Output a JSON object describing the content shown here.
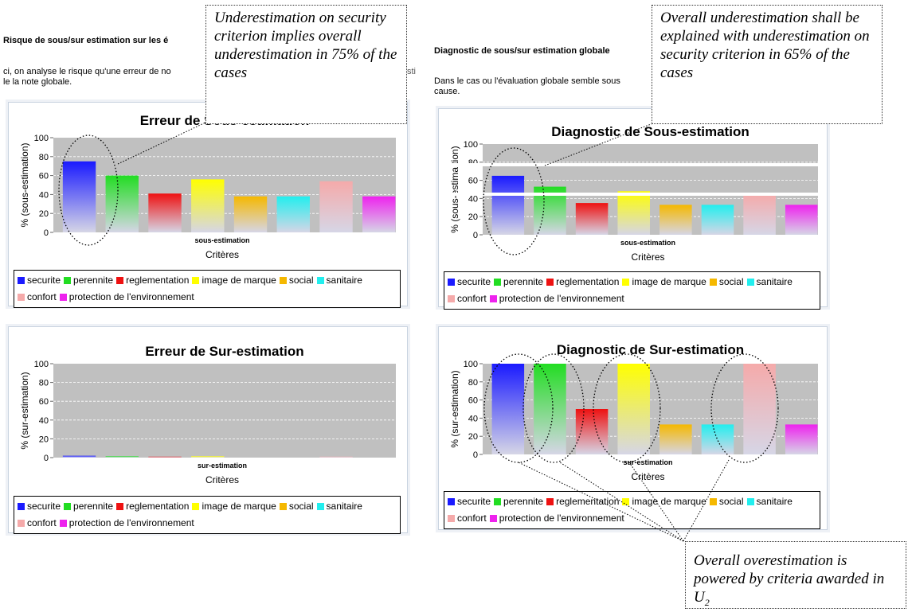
{
  "left_header": "Risque de sous/sur estimation sur les é",
  "left_intro": [
    "ci, on analyse le risque qu'une erreur de no",
    "le la note globale."
  ],
  "left_intro_tail": "sti",
  "right_header": "Diagnostic de sous/sur estimation globale",
  "right_intro": [
    "Dans le cas ou l'évaluation globale semble sous",
    "cause."
  ],
  "legend": [
    {
      "label": "securite",
      "color": "#1a1aff"
    },
    {
      "label": "perennite",
      "color": "#22dd22"
    },
    {
      "label": "reglementation",
      "color": "#ee1111"
    },
    {
      "label": "image de marque",
      "color": "#ffff00"
    },
    {
      "label": "social",
      "color": "#f5b800"
    },
    {
      "label": "sanitaire",
      "color": "#22eeee"
    },
    {
      "label": "confort",
      "color": "#f5aaaa"
    },
    {
      "label": "protection de l'environnement",
      "color": "#ee22ee"
    }
  ],
  "annotations": {
    "top_left": "Underestimation on security criterion implies overall underestimation in 75% of the cases",
    "top_right": "Overall underestimation shall be explained with underestimation on security criterion in 65% of the cases",
    "bottom_right_main": "Overall overestimation is powered by criteria awarded in U",
    "bottom_right_sub": "2"
  },
  "chart_data": [
    {
      "type": "bar",
      "title": "Erreur de Sous-estimation",
      "xlabel": "Critères",
      "ylabel": "% (sous-estimation)",
      "category_label": "sous-estimation",
      "ylim": [
        0,
        100
      ],
      "yticks": [
        0,
        20,
        40,
        60,
        80,
        100
      ],
      "grid": true,
      "legend_position": "bottom",
      "series": [
        {
          "name": "securite",
          "values": [
            75
          ]
        },
        {
          "name": "perennite",
          "values": [
            60
          ]
        },
        {
          "name": "reglementation",
          "values": [
            41
          ]
        },
        {
          "name": "image de marque",
          "values": [
            56
          ]
        },
        {
          "name": "social",
          "values": [
            38
          ]
        },
        {
          "name": "sanitaire",
          "values": [
            38
          ]
        },
        {
          "name": "confort",
          "values": [
            54
          ]
        },
        {
          "name": "protection de l'environnement",
          "values": [
            38
          ]
        }
      ]
    },
    {
      "type": "bar",
      "title": "Diagnostic de Sous-estimation",
      "xlabel": "Critères",
      "ylabel": "% (sous-estima tion)",
      "category_label": "sous-estimation",
      "ylim": [
        0,
        100
      ],
      "yticks": [
        0,
        20,
        40,
        60,
        80,
        100
      ],
      "grid": true,
      "legend_position": "bottom",
      "series": [
        {
          "name": "securite",
          "values": [
            65
          ]
        },
        {
          "name": "perennite",
          "values": [
            53
          ]
        },
        {
          "name": "reglementation",
          "values": [
            35
          ]
        },
        {
          "name": "image de marque",
          "values": [
            48
          ]
        },
        {
          "name": "social",
          "values": [
            33
          ]
        },
        {
          "name": "sanitaire",
          "values": [
            33
          ]
        },
        {
          "name": "confort",
          "values": [
            45
          ]
        },
        {
          "name": "protection de l'environnement",
          "values": [
            33
          ]
        }
      ]
    },
    {
      "type": "bar",
      "title": "Erreur de Sur-estimation",
      "xlabel": "Critères",
      "ylabel": "% (sur-estimation)",
      "category_label": "sur-estimation",
      "ylim": [
        0,
        100
      ],
      "yticks": [
        0,
        20,
        40,
        60,
        80,
        100
      ],
      "grid": true,
      "legend_position": "bottom",
      "series": [
        {
          "name": "securite",
          "values": [
            2
          ]
        },
        {
          "name": "perennite",
          "values": [
            1.5
          ]
        },
        {
          "name": "reglementation",
          "values": [
            1
          ]
        },
        {
          "name": "image de marque",
          "values": [
            1.5
          ]
        },
        {
          "name": "social",
          "values": [
            0
          ]
        },
        {
          "name": "sanitaire",
          "values": [
            0
          ]
        },
        {
          "name": "confort",
          "values": [
            1
          ]
        },
        {
          "name": "protection de l'environnement",
          "values": [
            0
          ]
        }
      ]
    },
    {
      "type": "bar",
      "title": "Diagnostic de Sur-estimation",
      "xlabel": "Critères",
      "ylabel": "% (sur-estimation)",
      "category_label": "sur-estimation",
      "ylim": [
        0,
        100
      ],
      "yticks": [
        0,
        20,
        40,
        60,
        80,
        100
      ],
      "grid": true,
      "legend_position": "bottom",
      "series": [
        {
          "name": "securite",
          "values": [
            100
          ]
        },
        {
          "name": "perennite",
          "values": [
            100
          ]
        },
        {
          "name": "reglementation",
          "values": [
            50
          ]
        },
        {
          "name": "image de marque",
          "values": [
            100
          ]
        },
        {
          "name": "social",
          "values": [
            33
          ]
        },
        {
          "name": "sanitaire",
          "values": [
            33
          ]
        },
        {
          "name": "confort",
          "values": [
            100
          ]
        },
        {
          "name": "protection de l'environnement",
          "values": [
            33
          ]
        }
      ]
    }
  ]
}
